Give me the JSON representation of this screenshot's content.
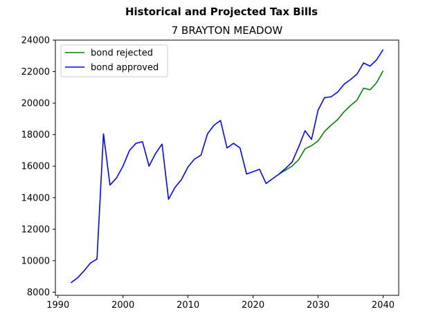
{
  "chart_data": {
    "type": "line",
    "suptitle": "Historical and Projected Tax Bills",
    "title": "7 BRAYTON MEADOW",
    "xlabel": "",
    "ylabel": "",
    "xlim": [
      1989.6,
      2042.4
    ],
    "ylim": [
      7800,
      24000
    ],
    "xticks": [
      1990,
      2000,
      2010,
      2020,
      2030,
      2040
    ],
    "yticks": [
      8000,
      10000,
      12000,
      14000,
      16000,
      18000,
      20000,
      22000,
      24000
    ],
    "grid": false,
    "legend_position": "upper-left",
    "series": [
      {
        "name": "bond rejected",
        "color": "#008000",
        "points": [
          [
            2024,
            15500
          ],
          [
            2025,
            15750
          ],
          [
            2026,
            16000
          ],
          [
            2027,
            16400
          ],
          [
            2028,
            17100
          ],
          [
            2029,
            17300
          ],
          [
            2030,
            17600
          ],
          [
            2031,
            18200
          ],
          [
            2032,
            18600
          ],
          [
            2033,
            18950
          ],
          [
            2034,
            19450
          ],
          [
            2035,
            19850
          ],
          [
            2036,
            20200
          ],
          [
            2037,
            20950
          ],
          [
            2038,
            20850
          ],
          [
            2039,
            21300
          ],
          [
            2040,
            22050
          ]
        ]
      },
      {
        "name": "bond approved",
        "color": "#0000ff",
        "points": [
          [
            1992,
            8600
          ],
          [
            1993,
            8900
          ],
          [
            1994,
            9350
          ],
          [
            1995,
            9850
          ],
          [
            1996,
            10100
          ],
          [
            1997,
            18050
          ],
          [
            1998,
            14800
          ],
          [
            1999,
            15250
          ],
          [
            2000,
            16000
          ],
          [
            2001,
            17000
          ],
          [
            2002,
            17450
          ],
          [
            2003,
            17550
          ],
          [
            2004,
            16000
          ],
          [
            2005,
            16800
          ],
          [
            2006,
            17400
          ],
          [
            2007,
            13900
          ],
          [
            2008,
            14650
          ],
          [
            2009,
            15150
          ],
          [
            2010,
            15950
          ],
          [
            2011,
            16450
          ],
          [
            2012,
            16700
          ],
          [
            2013,
            18050
          ],
          [
            2014,
            18600
          ],
          [
            2015,
            18900
          ],
          [
            2016,
            17150
          ],
          [
            2017,
            17450
          ],
          [
            2018,
            17150
          ],
          [
            2019,
            15500
          ],
          [
            2020,
            15650
          ],
          [
            2021,
            15800
          ],
          [
            2022,
            14900
          ],
          [
            2023,
            15200
          ],
          [
            2024,
            15500
          ],
          [
            2025,
            15850
          ],
          [
            2026,
            16250
          ],
          [
            2027,
            17200
          ],
          [
            2028,
            18250
          ],
          [
            2029,
            17700
          ],
          [
            2030,
            19550
          ],
          [
            2031,
            20350
          ],
          [
            2032,
            20400
          ],
          [
            2033,
            20700
          ],
          [
            2034,
            21200
          ],
          [
            2035,
            21500
          ],
          [
            2036,
            21850
          ],
          [
            2037,
            22550
          ],
          [
            2038,
            22350
          ],
          [
            2039,
            22750
          ],
          [
            2040,
            23400
          ]
        ]
      }
    ]
  }
}
